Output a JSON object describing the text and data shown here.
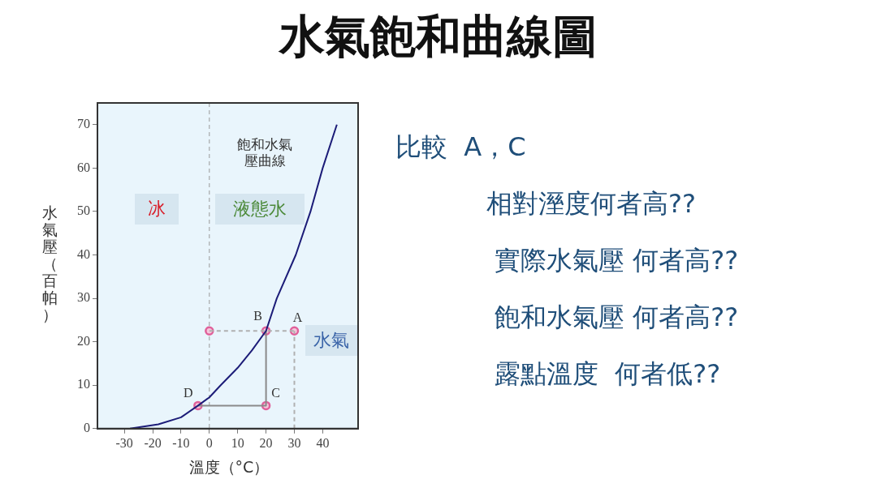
{
  "chart_data": {
    "type": "line",
    "title": "水氣飽和曲線圖",
    "xlabel": "溫度（°C）",
    "ylabel": "水氣壓（百帕）",
    "xlim": [
      -39.5,
      52.5
    ],
    "ylim": [
      0,
      75
    ],
    "xticks": [
      -30,
      -20,
      -10,
      0,
      10,
      20,
      30,
      40
    ],
    "yticks": [
      0,
      10,
      20,
      30,
      40,
      50,
      60,
      70
    ],
    "grid": false,
    "legend": false,
    "series": [
      {
        "color": "#1c1c78",
        "marker": "none",
        "line_style": "solid",
        "x": [
          -28,
          -18,
          -10,
          -4,
          0,
          4,
          10,
          15,
          20,
          23.8,
          30.5,
          35.7,
          40,
          45
        ],
        "values": [
          0,
          1,
          2.6,
          5.3,
          7.2,
          10,
          14,
          18,
          22.5,
          30,
          40,
          50,
          60,
          70
        ]
      },
      {
        "type": "line",
        "color": "#b0b0b0",
        "marker": "none",
        "line_style": "dashed",
        "x": [
          0,
          30
        ],
        "values": [
          22.5,
          22.5
        ]
      },
      {
        "type": "line",
        "color": "#b0b0b0",
        "marker": "none",
        "line_style": "dashed",
        "x": [
          30,
          30
        ],
        "values": [
          0,
          22.5
        ]
      },
      {
        "type": "line",
        "color": "#8a8a8a",
        "marker": "none",
        "line_style": "solid",
        "x": [
          -4,
          20,
          20
        ],
        "values": [
          5.3,
          5.3,
          22.5
        ]
      },
      {
        "type": "scatter",
        "color": "#e0609a",
        "marker": "circle",
        "x": [
          -4,
          0,
          20,
          20,
          30
        ],
        "values": [
          5.3,
          22.5,
          22.5,
          5.3,
          22.5
        ]
      }
    ],
    "ref_lines": [
      {
        "axis": "x",
        "value": 0,
        "label": null,
        "color": "#9a9a9a",
        "line_style": "dashed"
      }
    ],
    "annotations": [
      "飽和水氣壓曲線",
      "冰",
      "液態水",
      "水氣",
      {
        "text": "A",
        "x": 30,
        "y": 22.5
      },
      {
        "text": "B",
        "x": 20,
        "y": 22.5
      },
      {
        "text": "C",
        "x": 20,
        "y": 5.3
      },
      {
        "text": "D",
        "x": -4,
        "y": 5.3
      },
      "比較  A，C",
      "相對溼度何者高??",
      "實際水氣壓 何者高??",
      "飽和水氣壓 何者高??",
      "露點溫度  何者低??"
    ]
  }
}
